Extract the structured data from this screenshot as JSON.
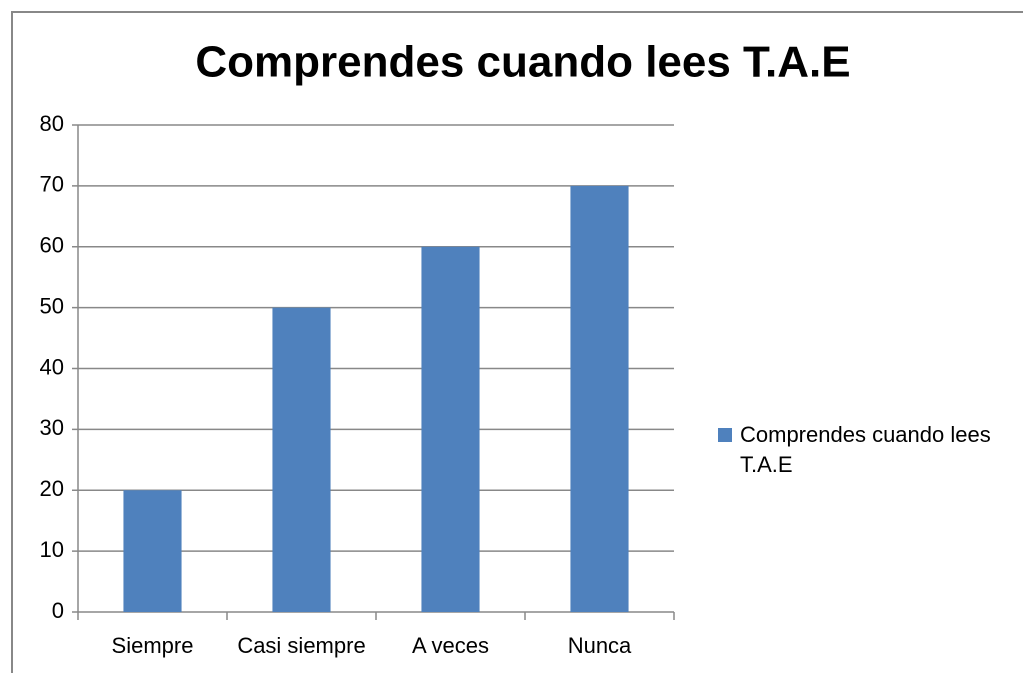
{
  "chart_data": {
    "type": "bar",
    "title": "Comprendes cuando lees T.A.E",
    "categories": [
      "Siempre",
      "Casi siempre",
      "A veces",
      "Nunca"
    ],
    "series": [
      {
        "name": "Comprendes cuando lees T.A.E",
        "color": "#4f81bd",
        "values": [
          20,
          50,
          60,
          70
        ]
      }
    ],
    "ylim": [
      0,
      80
    ],
    "yticks": [
      0,
      10,
      20,
      30,
      40,
      50,
      60,
      70,
      80
    ],
    "grid": true,
    "legend": "right"
  }
}
